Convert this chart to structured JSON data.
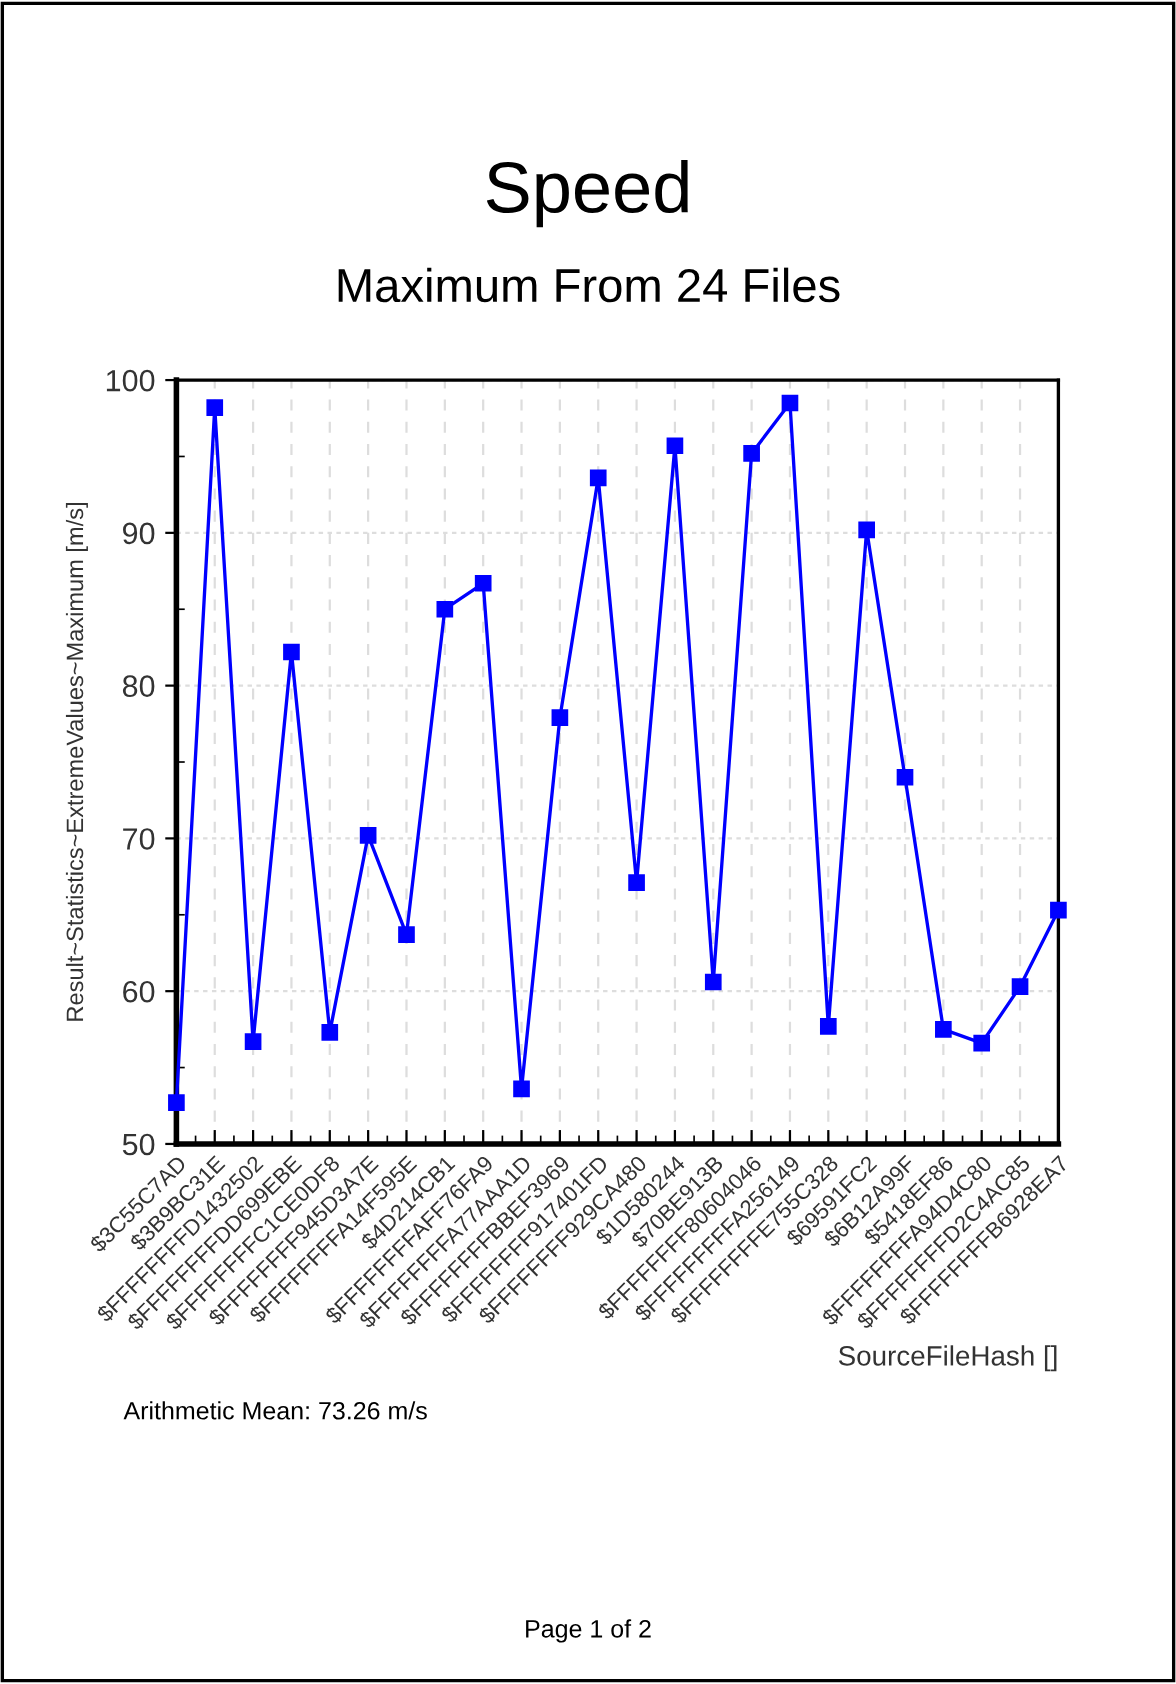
{
  "chart_data": {
    "type": "line",
    "title": "Speed",
    "subtitle": "Maximum From 24 Files",
    "xlabel": "SourceFileHash []",
    "ylabel": "Result~Statistics~ExtremeValues~Maximum [m/s]",
    "categories": [
      "$3C55C7AD",
      "$3B9BC31E",
      "$FFFFFFFFD1432502",
      "$FFFFFFFFDD699EBE",
      "$FFFFFFFFC1CE0DF8",
      "$FFFFFFFF945D3A7E",
      "$FFFFFFFFA14F595E",
      "$4D214CB1",
      "$FFFFFFFFAFF76FA9",
      "$FFFFFFFFA77AAA1D",
      "$FFFFFFFFBBEF3969",
      "$FFFFFFFF917401FD",
      "$FFFFFFFF929CA480",
      "$1D580244",
      "$70BE913B",
      "$FFFFFFFF80604046",
      "$FFFFFFFFFA256149",
      "$FFFFFFFFE755C328",
      "$69591FC2",
      "$6B12A99F",
      "$5418EF86",
      "$FFFFFFFFA94D4C80",
      "$FFFFFFFFD2C4AC85",
      "$FFFFFFFFB6928EA7"
    ],
    "series": [
      {
        "color": "#0000ff",
        "values": [
          52.7,
          98.2,
          56.7,
          82.2,
          57.3,
          70.2,
          63.7,
          85.0,
          86.7,
          53.6,
          77.9,
          93.6,
          67.1,
          95.7,
          60.6,
          95.2,
          98.5,
          57.7,
          90.2,
          74.0,
          57.5,
          56.6,
          60.3,
          65.3
        ]
      }
    ],
    "ylim": [
      50,
      100
    ],
    "yticks": [
      50,
      60,
      70,
      80,
      90,
      100
    ],
    "grid": true,
    "marker": "square",
    "line_style": "solid",
    "annotations": [
      "Arithmetic Mean: 73.26 m/s",
      "Page 1 of 2"
    ]
  }
}
